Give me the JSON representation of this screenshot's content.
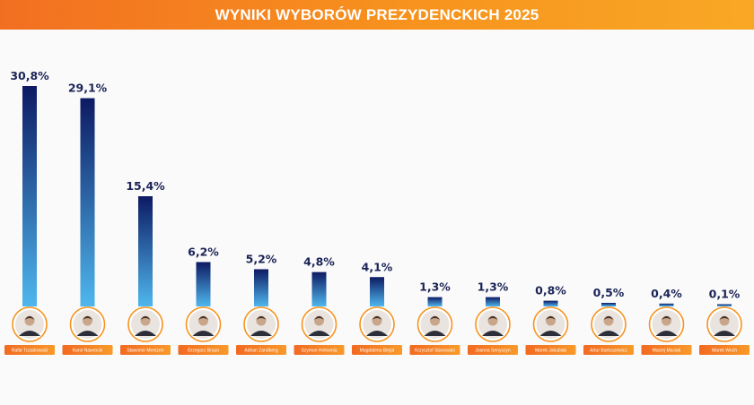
{
  "header": {
    "title": "WYNIKI WYBORÓW PREZYDENCKICH 2025"
  },
  "colors": {
    "accent": "#f7931e",
    "bar_top": "#0d1a63",
    "bar_bottom": "#4fb7ee",
    "value_text": "#1a2356",
    "name_tag": "#f47c20"
  },
  "chart_data": {
    "type": "bar",
    "title": "WYNIKI WYBORÓW PREZYDENCKICH 2025",
    "xlabel": "",
    "ylabel": "",
    "ylim": [
      0,
      30.8
    ],
    "grid": false,
    "categories": [
      "Rafał Trzaskowski",
      "Karol Nawrocki",
      "Sławomir Mentzen",
      "Grzegorz Braun",
      "Adrian Zandberg",
      "Szymon Hołownia",
      "Magdalena Biejat",
      "Krzysztof Stanowski",
      "Joanna Senyszyn",
      "Marek Jakubiak",
      "Artur Bartoszewicz",
      "Maciej Maciak",
      "Marek Woch"
    ],
    "values": [
      30.8,
      29.1,
      15.4,
      6.2,
      5.2,
      4.8,
      4.1,
      1.3,
      1.3,
      0.8,
      0.5,
      0.4,
      0.1
    ],
    "labels": [
      "30,8%",
      "29,1%",
      "15,4%",
      "6,2%",
      "5,2%",
      "4,8%",
      "4,1%",
      "1,3%",
      "1,3%",
      "0,8%",
      "0,5%",
      "0,4%",
      "0,1%"
    ]
  }
}
